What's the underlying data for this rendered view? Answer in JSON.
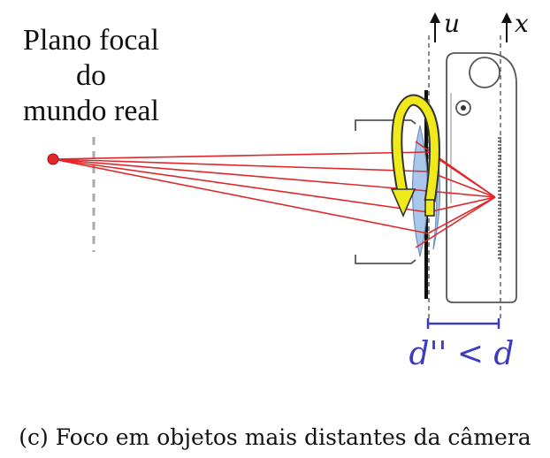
{
  "labels": {
    "world_focal_plane_line1": "Plano focal",
    "world_focal_plane_line2": "do",
    "world_focal_plane_line3": "mundo real",
    "axis_u": "u",
    "axis_x": "x",
    "distance": "d'' < d",
    "caption": "(c) Foco em objetos mais distantes da câmera"
  },
  "colors": {
    "rays": "#e0282b",
    "point": "#e0282b",
    "lens": "#a9c7ea",
    "arrow": "#f0ea1a",
    "distance": "#3b3bbf",
    "outline": "#555555"
  }
}
